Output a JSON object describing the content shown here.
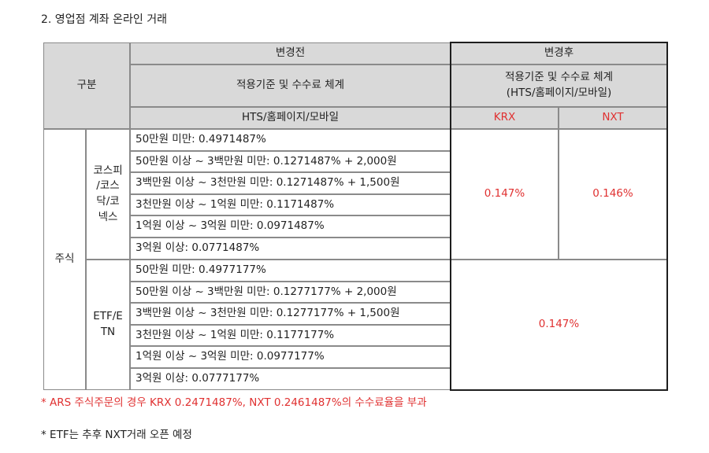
{
  "heading": "2. 영업점 계좌 온라인 거래",
  "table": {
    "header": {
      "category": "구분",
      "before": "변경전",
      "after": "변경후",
      "before_basis": "적용기준 및 수수료 체계",
      "after_basis_line1": "적용기준 및 수수료 체계",
      "after_basis_line2": "(HTS/홈페이지/모바일)",
      "before_channel": "HTS/홈페이지/모바일",
      "krx": "KRX",
      "nxt": "NXT"
    },
    "asset": "주식",
    "groups": [
      {
        "name_lines": [
          "코스피",
          "/코스",
          "닥/코",
          "넥스"
        ],
        "tiers": [
          "50만원 미만: 0.4971487%",
          "50만원 이상 ~ 3백만원 미만: 0.1271487% + 2,000원",
          "3백만원 이상 ~ 3천만원 미만: 0.1271487% + 1,500원",
          "3천만원 이상 ~ 1억원 미만: 0.1171487%",
          "1억원 이상 ~ 3억원 미만: 0.0971487%",
          "3억원 이상: 0.0771487%"
        ],
        "krx_rate": "0.147%",
        "nxt_rate": "0.146%"
      },
      {
        "name_lines": [
          "ETF/E",
          "TN"
        ],
        "tiers": [
          "50만원 미만: 0.4977177%",
          "50만원 이상 ~ 3백만원 미만: 0.1277177% + 2,000원",
          "3백만원 이상 ~ 3천만원 미만: 0.1277177% + 1,500원",
          "3천만원 이상 ~ 1억원 미만: 0.1177177%",
          "1억원 이상 ~ 3억원 미만: 0.0977177%",
          "3억원 이상: 0.0777177%"
        ],
        "rate": "0.147%"
      }
    ]
  },
  "notes": {
    "ars": "* ARS 주식주문의 경우 KRX 0.2471487%, NXT 0.2461487%의 수수료율을 부과",
    "etf": "* ETF는 추후 NXT거래 오픈 예정"
  },
  "colors": {
    "header_bg": "#d9d9d9",
    "accent_red": "#e03131",
    "border": "#8a8a8a"
  }
}
